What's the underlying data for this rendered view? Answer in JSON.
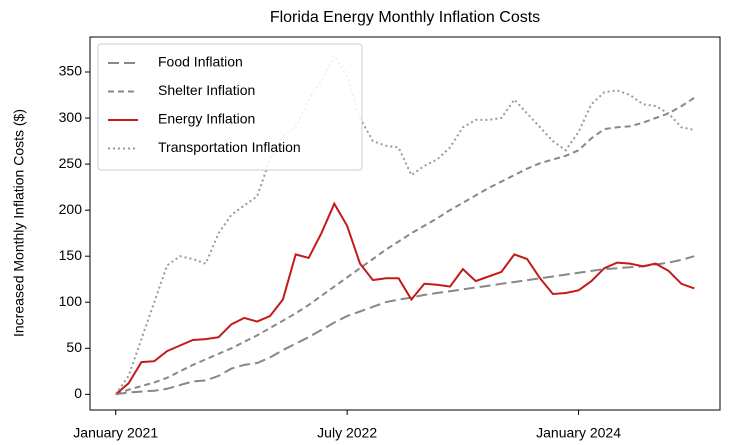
{
  "chart_data": {
    "type": "line",
    "title": "Florida Energy Monthly Inflation Costs",
    "ylabel": "Increased Monthly Inflation Costs ($)",
    "x": [
      "2021-01",
      "2021-02",
      "2021-03",
      "2021-04",
      "2021-05",
      "2021-06",
      "2021-07",
      "2021-08",
      "2021-09",
      "2021-10",
      "2021-11",
      "2021-12",
      "2022-01",
      "2022-02",
      "2022-03",
      "2022-04",
      "2022-05",
      "2022-06",
      "2022-07",
      "2022-08",
      "2022-09",
      "2022-10",
      "2022-11",
      "2022-12",
      "2023-01",
      "2023-02",
      "2023-03",
      "2023-04",
      "2023-05",
      "2023-06",
      "2023-07",
      "2023-08",
      "2023-09",
      "2023-10",
      "2023-11",
      "2023-12",
      "2024-01",
      "2024-02",
      "2024-03",
      "2024-04",
      "2024-05",
      "2024-06",
      "2024-07",
      "2024-08",
      "2024-09",
      "2024-10"
    ],
    "xlim": [
      "2020-11",
      "2024-12"
    ],
    "xticks": [
      {
        "value": "2021-01",
        "label": "January 2021"
      },
      {
        "value": "2022-07",
        "label": "July 2022"
      },
      {
        "value": "2024-01",
        "label": "January 2024"
      }
    ],
    "ylim": [
      -17,
      388
    ],
    "yticks": [
      0,
      50,
      100,
      150,
      200,
      250,
      300,
      350
    ],
    "legend": "upper left",
    "series": [
      {
        "name": "Food Inflation",
        "color": "#888888",
        "dash": "long-dash",
        "values": [
          0,
          2,
          3,
          4,
          6,
          10,
          14,
          15,
          20,
          28,
          32,
          34,
          40,
          48,
          55,
          62,
          70,
          78,
          85,
          90,
          95,
          100,
          103,
          105,
          108,
          110,
          112,
          114,
          116,
          118,
          120,
          122,
          124,
          126,
          128,
          130,
          132,
          134,
          136,
          137,
          138,
          139,
          141,
          143,
          146,
          150
        ]
      },
      {
        "name": "Shelter Inflation",
        "color": "#888888",
        "dash": "dash",
        "values": [
          0,
          5,
          9,
          13,
          18,
          25,
          32,
          38,
          44,
          50,
          57,
          64,
          72,
          80,
          88,
          97,
          107,
          117,
          127,
          137,
          147,
          157,
          166,
          175,
          183,
          191,
          200,
          208,
          216,
          224,
          231,
          238,
          245,
          251,
          255,
          259,
          265,
          278,
          288,
          290,
          291,
          295,
          300,
          305,
          313,
          322
        ]
      },
      {
        "name": "Energy Inflation",
        "color": "#c41a1a",
        "dash": "solid",
        "values": [
          0,
          12,
          35,
          36,
          47,
          53,
          59,
          60,
          62,
          76,
          83,
          79,
          85,
          103,
          152,
          148,
          175,
          207,
          183,
          142,
          124,
          126,
          126,
          103,
          120,
          119,
          117,
          136,
          123,
          128,
          133,
          152,
          147,
          126,
          109,
          110,
          113,
          123,
          137,
          143,
          142,
          139,
          142,
          134,
          120,
          115
        ]
      },
      {
        "name": "Transportation Inflation",
        "color": "#999999",
        "dash": "dot",
        "values": [
          0,
          20,
          60,
          100,
          140,
          150,
          147,
          142,
          175,
          195,
          205,
          215,
          255,
          280,
          290,
          320,
          340,
          368,
          345,
          300,
          275,
          270,
          268,
          238,
          248,
          255,
          268,
          290,
          298,
          298,
          300,
          320,
          305,
          290,
          275,
          265,
          285,
          315,
          328,
          330,
          325,
          315,
          313,
          305,
          290,
          287
        ]
      }
    ]
  }
}
